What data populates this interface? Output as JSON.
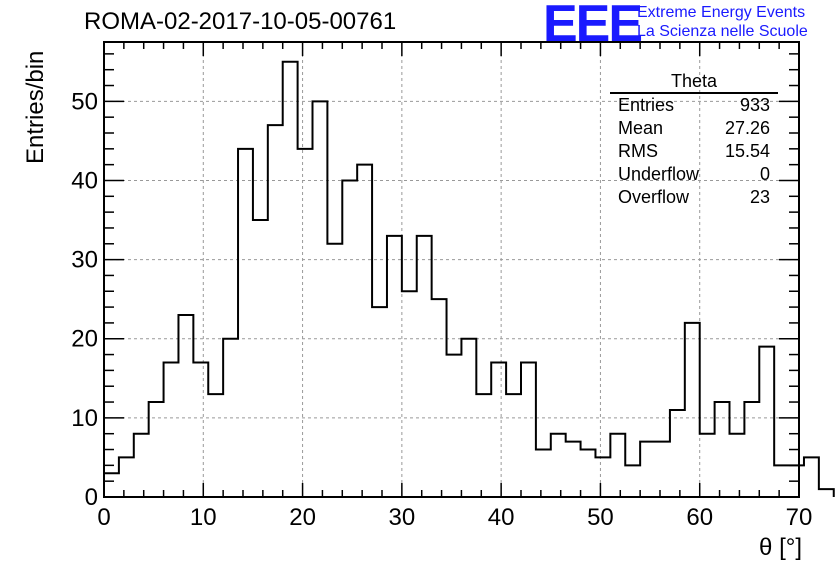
{
  "header": {
    "title": "ROMA-02-2017-10-05-00761",
    "logo_text": "EEE",
    "logo_line1": "Extreme Energy Events",
    "logo_line2": "La Scienza nelle Scuole",
    "logo_color": "#1a1aff"
  },
  "stats": {
    "title": "Theta",
    "rows": [
      {
        "label": "Entries",
        "value": "933"
      },
      {
        "label": "Mean",
        "value": "27.26"
      },
      {
        "label": "RMS",
        "value": "15.54"
      },
      {
        "label": "Underflow",
        "value": "0"
      },
      {
        "label": "Overflow",
        "value": "23"
      }
    ]
  },
  "chart_data": {
    "type": "histogram",
    "xlabel": "θ [°]",
    "ylabel": "Entries/bin",
    "xlim": [
      0,
      70
    ],
    "ylim": [
      0,
      57.5
    ],
    "x_ticks": [
      0,
      10,
      20,
      30,
      40,
      50,
      60,
      70
    ],
    "y_ticks": [
      0,
      10,
      20,
      30,
      40,
      50
    ],
    "grid": true,
    "bin_width": 1.5,
    "bin_start": 0,
    "values": [
      3,
      5,
      8,
      12,
      17,
      23,
      17,
      13,
      20,
      44,
      35,
      47,
      55,
      44,
      50,
      32,
      40,
      42,
      24,
      33,
      26,
      33,
      25,
      18,
      20,
      13,
      17,
      13,
      17,
      6,
      8,
      7,
      6,
      5,
      8,
      4,
      7,
      7,
      11,
      22,
      8,
      12,
      8,
      12,
      19,
      4,
      4,
      5,
      1
    ]
  }
}
